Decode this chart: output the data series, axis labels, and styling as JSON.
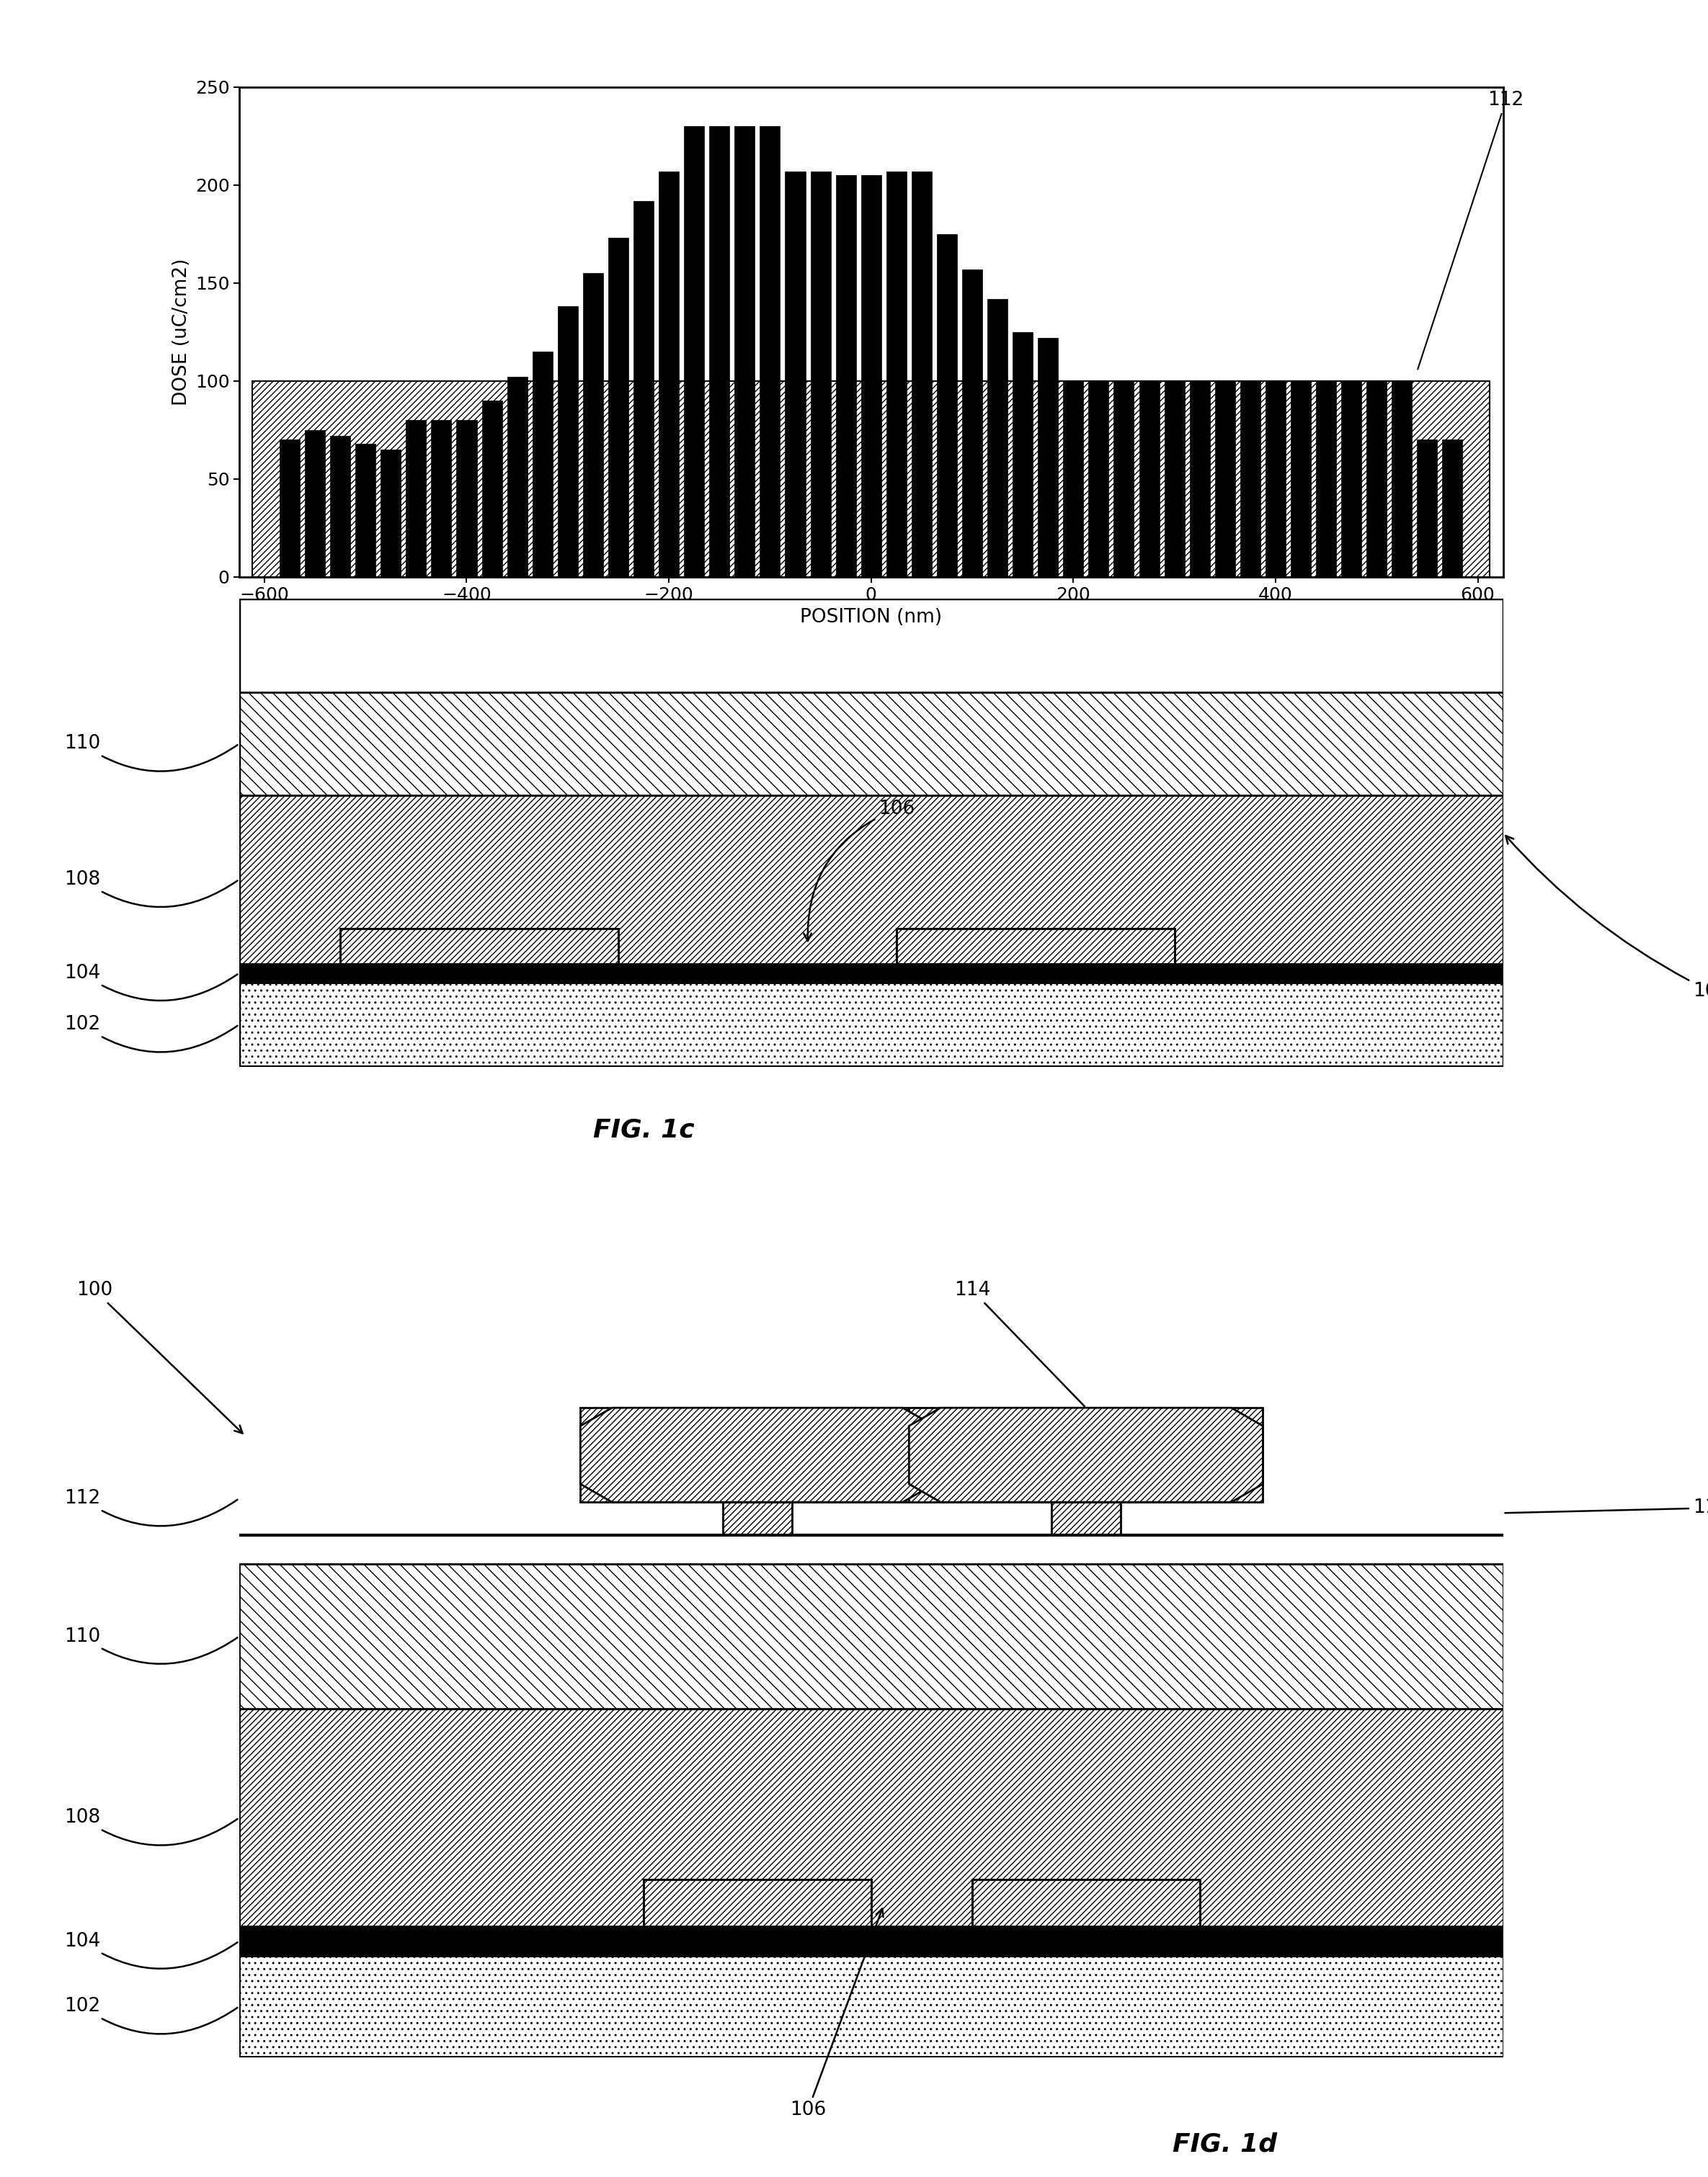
{
  "bar_positions": [
    -575,
    -550,
    -525,
    -500,
    -475,
    -450,
    -425,
    -400,
    -375,
    -350,
    -325,
    -300,
    -275,
    -250,
    -225,
    -200,
    -175,
    -150,
    -125,
    -100,
    -75,
    -50,
    -25,
    0,
    25,
    50,
    75,
    100,
    125,
    150,
    175,
    200,
    225,
    250,
    275,
    300,
    325,
    350,
    375,
    400,
    425,
    450,
    475,
    500,
    525,
    550,
    575
  ],
  "bar_heights": [
    70,
    75,
    72,
    68,
    65,
    80,
    80,
    80,
    90,
    102,
    115,
    138,
    155,
    173,
    192,
    207,
    230,
    230,
    230,
    230,
    207,
    207,
    205,
    205,
    207,
    207,
    175,
    157,
    142,
    125,
    122,
    100,
    100,
    100,
    100,
    100,
    100,
    100,
    100,
    100,
    100,
    100,
    100,
    100,
    100,
    70,
    70
  ],
  "ylim": [
    0,
    250
  ],
  "xlim": [
    -625,
    625
  ],
  "yticks": [
    0,
    50,
    100,
    150,
    200,
    250
  ],
  "xticks": [
    -600,
    -400,
    -200,
    0,
    200,
    400,
    600
  ],
  "ylabel": "DOSE (uC/cm2)",
  "xlabel": "POSITION (nm)",
  "bar_color": "#000000",
  "background_color": "#ffffff",
  "fig1c_label": "FIG. 1c",
  "fig1d_label": "FIG. 1d",
  "label_fontsize": 20,
  "tick_fontsize": 18,
  "axis_label_fontsize": 19,
  "annotation_fontsize": 19
}
